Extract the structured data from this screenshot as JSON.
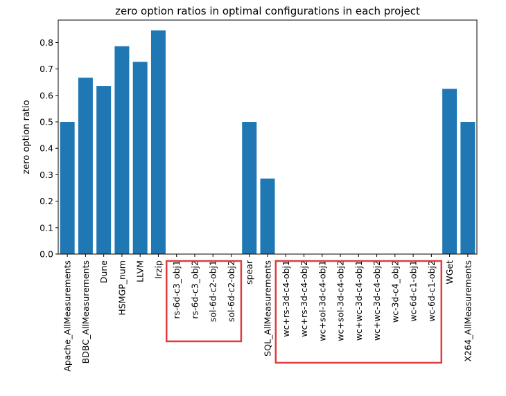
{
  "chart_data": {
    "type": "bar",
    "title": "zero option ratios in optimal configurations in each project",
    "xlabel": "",
    "ylabel": "zero option ratio",
    "ylim": [
      0.0,
      0.885
    ],
    "yticks": [
      "0.0",
      "0.1",
      "0.2",
      "0.3",
      "0.4",
      "0.5",
      "0.6",
      "0.7",
      "0.8"
    ],
    "grid": false,
    "legend": "none",
    "bar_color": "#1f77b4",
    "categories": [
      "Apache_AllMeasurements",
      "BDBC_AllMeasurements",
      "Dune",
      "HSMGP_num",
      "LLVM",
      "lrzip",
      "rs-6d-c3_obj1",
      "rs-6d-c3_obj2",
      "sol-6d-c2-obj1",
      "sol-6d-c2-obj2",
      "spear",
      "SQL_AllMeasurements",
      "wc+rs-3d-c4-obj1",
      "wc+rs-3d-c4-obj2",
      "wc+sol-3d-c4-obj1",
      "wc+sol-3d-c4-obj2",
      "wc+wc-3d-c4-obj1",
      "wc+wc-3d-c4-obj2",
      "wc-3d-c4_obj2",
      "wc-6d-c1-obj1",
      "wc-6d-c1-obj2",
      "WGet",
      "X264_AllMeasurements"
    ],
    "values": [
      0.5,
      0.667,
      0.636,
      0.786,
      0.727,
      0.846,
      0,
      0,
      0,
      0,
      0.5,
      0.2857,
      0,
      0,
      0,
      0,
      0,
      0,
      0,
      0,
      0,
      0.625,
      0.5
    ],
    "annotations": [
      {
        "type": "highlight-box",
        "color": "#e03c3c",
        "from_category": 6,
        "to_category": 9
      },
      {
        "type": "highlight-box",
        "color": "#e03c3c",
        "from_category": 12,
        "to_category": 20
      }
    ]
  }
}
